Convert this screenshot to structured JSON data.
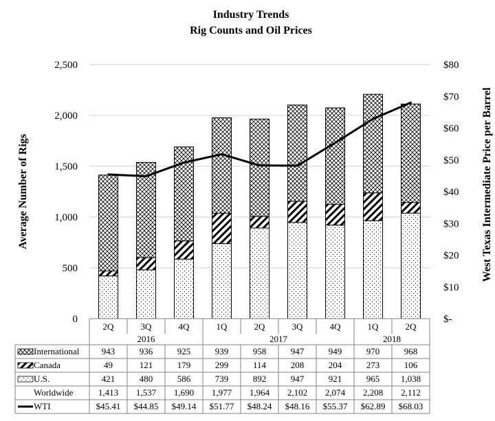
{
  "chart_data": {
    "type": "bar",
    "title": "Industry Trends",
    "subtitle": "Rig Counts and Oil Prices",
    "ylabel": "Average Number of Rigs",
    "y2label": "West Texas Intermediate Price per Barrel",
    "ylim": [
      0,
      2500
    ],
    "y2lim": [
      0,
      80
    ],
    "yticks": [
      "0",
      "500",
      "1,000",
      "1,500",
      "2,000",
      "2,500"
    ],
    "y2ticks": [
      "$-",
      "$10",
      "$20",
      "$30",
      "$40",
      "$50",
      "$60",
      "$70",
      "$80"
    ],
    "grid": true,
    "categories": [
      "2Q",
      "3Q",
      "4Q",
      "1Q",
      "2Q",
      "3Q",
      "4Q",
      "1Q",
      "2Q"
    ],
    "years": [
      {
        "label": "2016",
        "span": 3
      },
      {
        "label": "2017",
        "span": 4
      },
      {
        "label": "2018",
        "span": 2
      }
    ],
    "series": [
      {
        "name": "U.S.",
        "type": "stacked-bar",
        "pattern": "dots",
        "values": [
          421,
          480,
          586,
          739,
          892,
          947,
          921,
          965,
          1038
        ],
        "labels": [
          "421",
          "480",
          "586",
          "739",
          "892",
          "947",
          "921",
          "965",
          "1,038"
        ]
      },
      {
        "name": "Canada",
        "type": "stacked-bar",
        "pattern": "diagonal",
        "values": [
          49,
          121,
          179,
          299,
          114,
          208,
          204,
          273,
          106
        ],
        "labels": [
          "49",
          "121",
          "179",
          "299",
          "114",
          "208",
          "204",
          "273",
          "106"
        ]
      },
      {
        "name": "International",
        "type": "stacked-bar",
        "pattern": "crosshatch",
        "values": [
          943,
          936,
          925,
          939,
          958,
          947,
          949,
          970,
          968
        ],
        "labels": [
          "943",
          "936",
          "925",
          "939",
          "958",
          "947",
          "949",
          "970",
          "968"
        ]
      },
      {
        "name": "WTI",
        "type": "line",
        "axis": "right",
        "values": [
          45.41,
          44.85,
          49.14,
          51.77,
          48.24,
          48.16,
          55.37,
          62.89,
          68.03
        ],
        "labels": [
          "$45.41",
          "$44.85",
          "$49.14",
          "$51.77",
          "$48.24",
          "$48.16",
          "$55.37",
          "$62.89",
          "$68.03"
        ]
      }
    ],
    "worldwide": {
      "name": "Worldwide",
      "values": [
        1413,
        1537,
        1690,
        1977,
        1964,
        2102,
        2074,
        2208,
        2112
      ],
      "labels": [
        "1,413",
        "1,537",
        "1,690",
        "1,977",
        "1,964",
        "2,102",
        "2,074",
        "2,208",
        "2,112"
      ]
    },
    "table_rows": [
      "International",
      "Canada",
      "U.S.",
      "Worldwide",
      "WTI"
    ],
    "colors": {
      "line": "#000000",
      "grid": "#d0d0d0",
      "border": "#808080"
    }
  }
}
